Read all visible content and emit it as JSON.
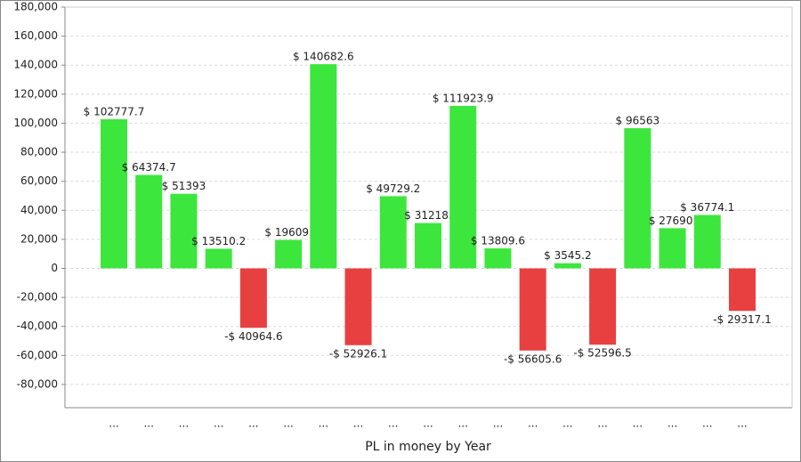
{
  "chart_data": {
    "type": "bar",
    "x_label": "PL in money by Year",
    "categories": [
      "...",
      "...",
      "...",
      "...",
      "...",
      "...",
      "...",
      "...",
      "...",
      "...",
      "...",
      "...",
      "...",
      "...",
      "...",
      "...",
      "...",
      "...",
      "..."
    ],
    "values": [
      102777.7,
      64374.7,
      51393,
      13510.2,
      -40964.6,
      19609,
      140682.6,
      -52926.1,
      49729.2,
      31218,
      111923.9,
      13809.6,
      -56605.6,
      3545.2,
      -52596.5,
      96563,
      27690,
      36774.1,
      -29317.1
    ],
    "value_labels": [
      "$ 102777.7",
      "$ 64374.7",
      "$ 51393",
      "$ 13510.2",
      "-$ 40964.6",
      "$ 19609.",
      "$ 140682.6",
      "-$ 52926.1",
      "$ 49729.2",
      "$ 31218.",
      "$ 111923.9",
      "$ 13809.6",
      "-$ 56605.6",
      "$ 3545.2",
      "-$ 52596.5",
      "$ 96563",
      "$ 27690.",
      "$ 36774.1",
      "-$ 29317.1"
    ],
    "colors": {
      "positive": "#3de63d",
      "negative": "#e84040"
    },
    "ylim": [
      -96000,
      180000
    ],
    "yticks": [
      {
        "value": -80000,
        "label": "-80,000"
      },
      {
        "value": -60000,
        "label": "-60,000"
      },
      {
        "value": -40000,
        "label": "-40,000"
      },
      {
        "value": -20000,
        "label": "-20,000"
      },
      0,
      {
        "value": 20000,
        "label": "20,000"
      },
      {
        "value": 40000,
        "label": "40,000"
      },
      {
        "value": 60000,
        "label": "60,000"
      },
      {
        "value": 80000,
        "label": "80,000"
      },
      {
        "value": 100000,
        "label": "100,000"
      },
      {
        "value": 120000,
        "label": "120,000"
      },
      {
        "value": 140000,
        "label": "140,000"
      },
      {
        "value": 160000,
        "label": "160,000"
      },
      {
        "value": 180000,
        "label": "180,000"
      }
    ],
    "grid": true
  }
}
